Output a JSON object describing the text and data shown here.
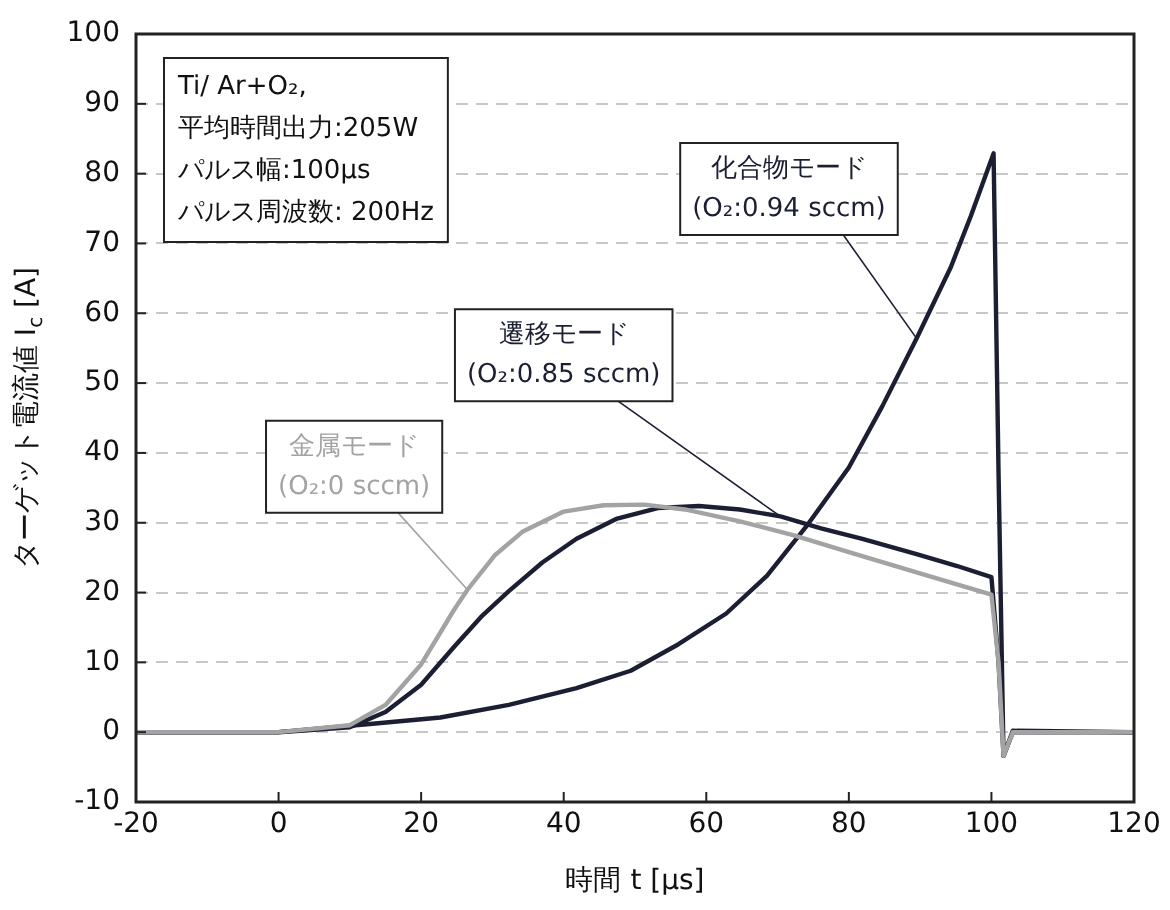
{
  "chart_data": {
    "type": "line",
    "xlabel": "時間 t [μs]",
    "ylabel": "ターゲット電流値 I$_{c}$ [A]",
    "xlim": [
      -20,
      120
    ],
    "xticks": [
      -20,
      0,
      20,
      40,
      60,
      80,
      100,
      120
    ],
    "ylim": [
      -10,
      100
    ],
    "yticks": [
      -10,
      0,
      10,
      20,
      30,
      40,
      50,
      60,
      70,
      80,
      90,
      100
    ],
    "grid": "y",
    "legend": false,
    "marker": "none",
    "line_style": "solid",
    "annotations": [
      "Ti/ Ar+O₂,",
      "平均時間出力:205W",
      "パルス幅:100μs",
      "パルス周波数: 200Hz"
    ],
    "series": [
      {
        "name": "金属モード (O₂:0 sccm)",
        "color": "#a3a3a3",
        "x": [
          -20,
          0,
          10,
          15,
          20,
          24.6,
          26.5,
          30.3,
          34.2,
          40,
          45.6,
          51.3,
          57,
          64.7,
          72.3,
          80,
          89.5,
          100,
          101,
          101.7,
          103,
          120
        ],
        "values": [
          0,
          0,
          1,
          3.9,
          9.7,
          17.5,
          20.4,
          25.3,
          28.7,
          31.6,
          32.5,
          32.6,
          31.9,
          30.2,
          28.2,
          25.8,
          22.9,
          19.7,
          10,
          -3.4,
          0,
          0
        ]
      },
      {
        "name": "遷移モード (O₂:0.85 sccm)",
        "color": "#1c1f33",
        "x": [
          -20,
          0,
          10,
          15,
          20,
          24.6,
          28.4,
          32.3,
          37,
          41.8,
          47.5,
          53.2,
          59,
          64.7,
          70.4,
          76.1,
          81.9,
          89.5,
          95.2,
          100,
          101,
          101.7,
          103,
          120
        ],
        "values": [
          0,
          0,
          0.7,
          2.9,
          6.8,
          12.2,
          16.5,
          20.2,
          24.3,
          27.7,
          30.6,
          32.1,
          32.4,
          31.9,
          30.9,
          29.2,
          27.7,
          25.5,
          23.8,
          22.2,
          10,
          -3.4,
          0,
          0
        ]
      },
      {
        "name": "化合物モード (O₂:0.94 sccm)",
        "color": "#1c1f33",
        "x": [
          -20,
          0,
          13.2,
          22.7,
          32.3,
          41.8,
          49.4,
          56.1,
          62.8,
          68.5,
          74.2,
          80,
          84.7,
          89.5,
          94.3,
          97.1,
          100.3,
          101,
          101.7,
          103,
          120
        ],
        "values": [
          0,
          0,
          1.2,
          2.1,
          3.9,
          6.3,
          8.8,
          12.6,
          17,
          22.4,
          29.7,
          37.9,
          46.7,
          56.4,
          66.6,
          73.9,
          82.9,
          37,
          -3.4,
          0.2,
          0
        ]
      }
    ]
  }
}
